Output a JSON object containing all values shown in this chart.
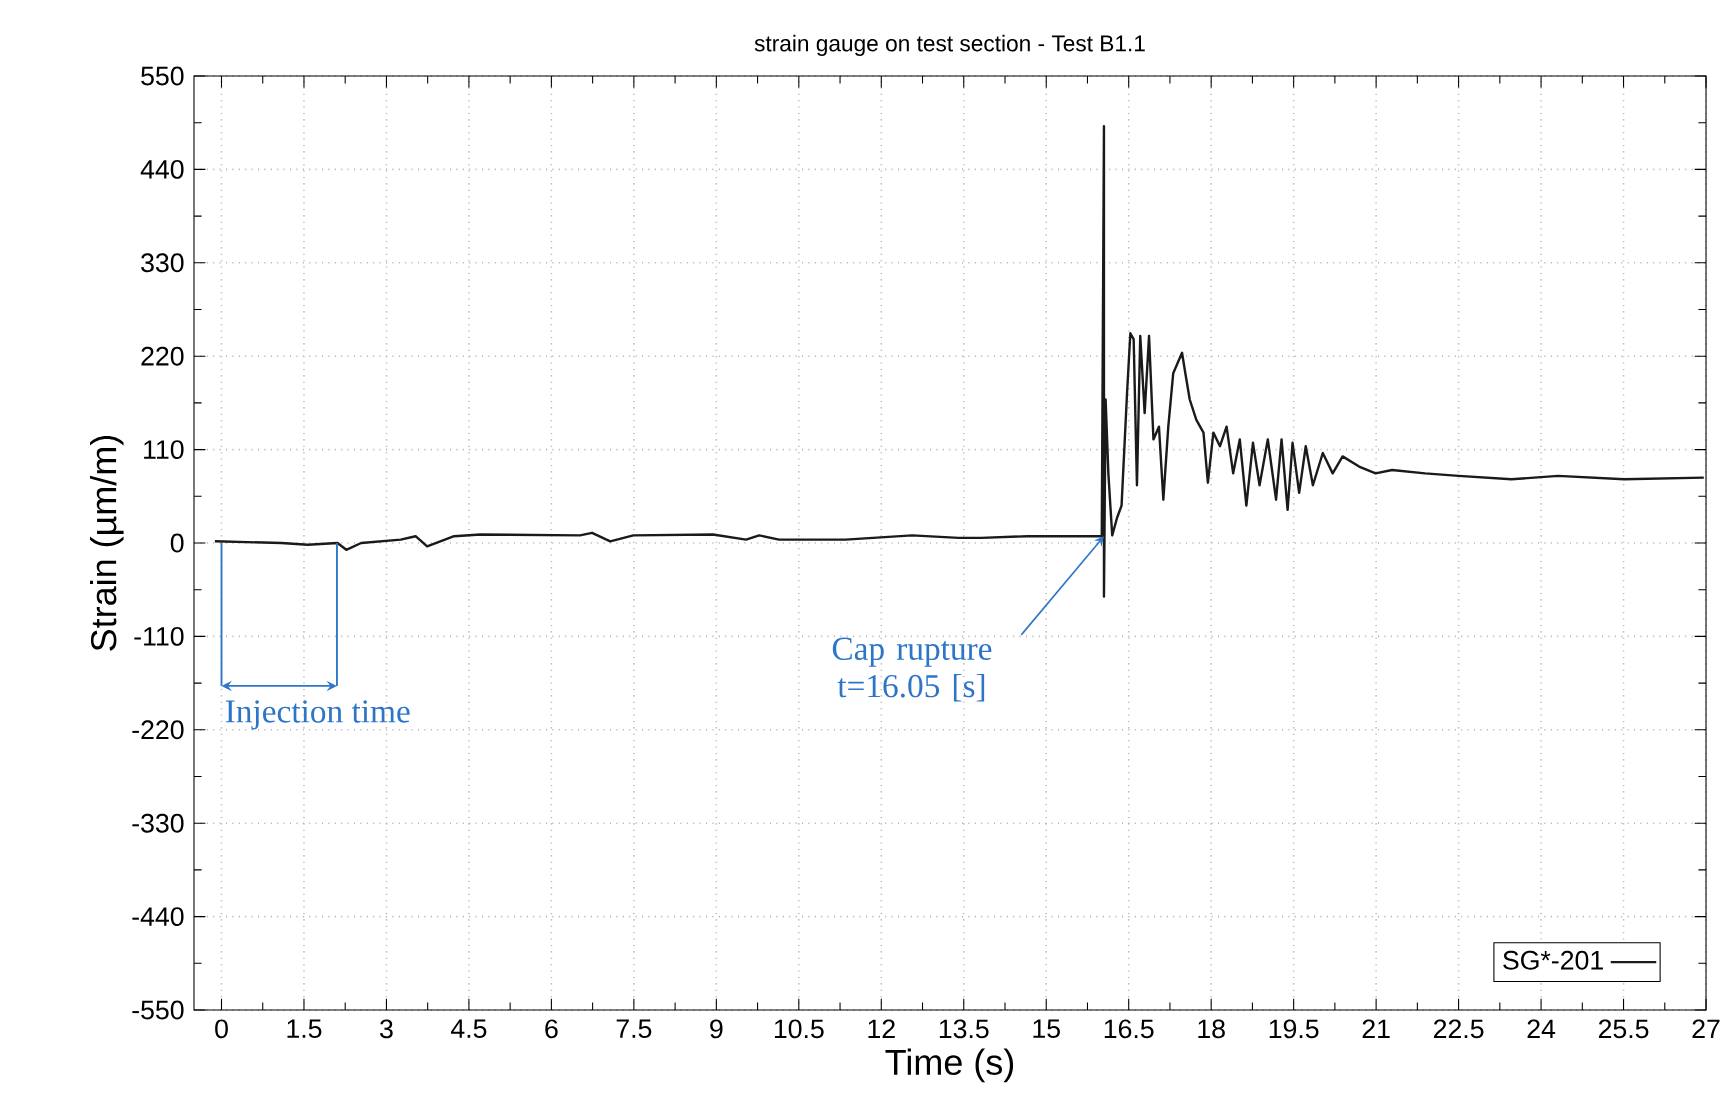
{
  "chart_data": {
    "type": "line",
    "title": "strain gauge on test section - Test B1.1",
    "xlabel": "Time (s)",
    "ylabel": "Strain (µm/m)",
    "xlim": [
      -0.5,
      27
    ],
    "ylim": [
      -550,
      550
    ],
    "xticks": [
      0,
      1.5,
      3,
      4.5,
      6,
      7.5,
      9,
      10.5,
      12,
      13.5,
      15,
      16.5,
      18,
      19.5,
      21,
      22.5,
      24,
      25.5,
      27
    ],
    "yticks": [
      -550,
      -440,
      -330,
      -220,
      -110,
      0,
      110,
      220,
      330,
      440,
      550
    ],
    "grid": true,
    "legend": "bottom right",
    "marker": "none",
    "line_style": "solid",
    "series": [
      {
        "name": "SG*-201",
        "color": "#1a1a1a",
        "x": [
          -0.12,
          1.09,
          1.57,
          2.11,
          2.27,
          2.54,
          3.26,
          3.53,
          3.74,
          4.23,
          4.71,
          6.52,
          6.74,
          7.07,
          7.49,
          8.94,
          9.54,
          9.78,
          10.14,
          11.35,
          12.56,
          13.41,
          13.82,
          14.66,
          16.01,
          16.05,
          16.05,
          16.08,
          16.13,
          16.2,
          16.29,
          16.37,
          16.47,
          16.53,
          16.59,
          16.65,
          16.71,
          16.79,
          16.87,
          16.95,
          17.05,
          17.13,
          17.22,
          17.31,
          17.47,
          17.53,
          17.61,
          17.73,
          17.86,
          17.94,
          18.04,
          18.16,
          18.28,
          18.4,
          18.52,
          18.64,
          18.76,
          18.88,
          19.03,
          19.18,
          19.28,
          19.39,
          19.48,
          19.6,
          19.72,
          19.85,
          20.03,
          20.21,
          20.39,
          20.69,
          20.99,
          21.29,
          21.89,
          22.5,
          23.46,
          24.31,
          25.51,
          26.96
        ],
        "values": [
          2,
          0,
          -2,
          0,
          -8,
          0,
          4,
          8,
          -4,
          8,
          10,
          9,
          12,
          2,
          9,
          10,
          4,
          9,
          4,
          4,
          9,
          6,
          6,
          8,
          8,
          491,
          -63,
          169,
          82,
          9,
          30,
          44,
          177,
          247,
          240,
          68,
          244,
          153,
          244,
          122,
          137,
          51,
          137,
          200,
          224,
          200,
          169,
          145,
          130,
          71,
          130,
          114,
          137,
          82,
          122,
          44,
          118,
          68,
          122,
          51,
          122,
          39,
          118,
          59,
          114,
          68,
          106,
          82,
          102,
          90,
          82,
          86,
          82,
          79,
          75,
          79,
          75,
          77
        ]
      }
    ],
    "annotations": [
      {
        "text": "Injection time",
        "x": 2.1,
        "y": 0
      },
      {
        "text": "Cap rupture t=16.05 [s]",
        "x": 16.05,
        "y": 8
      }
    ]
  }
}
